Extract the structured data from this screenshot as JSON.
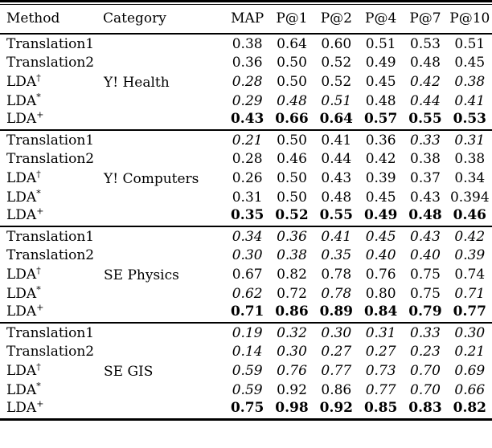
{
  "page": {
    "background": "#ffffff",
    "text_color": "#000000"
  },
  "table": {
    "columns": [
      "Method",
      "Category",
      "MAP",
      "P@1",
      "P@2",
      "P@4",
      "P@7",
      "P@10"
    ],
    "blocks": [
      {
        "category": "Y! Health",
        "rows": [
          {
            "method": "Translation1",
            "sup": "",
            "values": [
              "0.38",
              "0.64",
              "0.60",
              "0.51",
              "0.53",
              "0.51"
            ],
            "styles": [
              "",
              "",
              "",
              "",
              "",
              ""
            ]
          },
          {
            "method": "Translation2",
            "sup": "",
            "values": [
              "0.36",
              "0.50",
              "0.52",
              "0.49",
              "0.48",
              "0.45"
            ],
            "styles": [
              "",
              "",
              "",
              "",
              "",
              ""
            ]
          },
          {
            "method": "LDA",
            "sup": "†",
            "values": [
              "0.28",
              "0.50",
              "0.52",
              "0.45",
              "0.42",
              "0.38"
            ],
            "styles": [
              "i",
              "",
              "",
              "",
              "i",
              "i"
            ]
          },
          {
            "method": "LDA",
            "sup": "*",
            "values": [
              "0.29",
              "0.48",
              "0.51",
              "0.48",
              "0.44",
              "0.41"
            ],
            "styles": [
              "i",
              "i",
              "i",
              "",
              "i",
              "i"
            ]
          },
          {
            "method": "LDA",
            "sup": "+",
            "values": [
              "0.43",
              "0.66",
              "0.64",
              "0.57",
              "0.55",
              "0.53"
            ],
            "styles": [
              "b",
              "b",
              "b",
              "b",
              "b",
              "b"
            ]
          }
        ]
      },
      {
        "category": "Y! Computers",
        "rows": [
          {
            "method": "Translation1",
            "sup": "",
            "values": [
              "0.21",
              "0.50",
              "0.41",
              "0.36",
              "0.33",
              "0.31"
            ],
            "styles": [
              "i",
              "",
              "",
              "",
              "i",
              "i"
            ]
          },
          {
            "method": "Translation2",
            "sup": "",
            "values": [
              "0.28",
              "0.46",
              "0.44",
              "0.42",
              "0.38",
              "0.38"
            ],
            "styles": [
              "",
              "",
              "",
              "",
              "",
              ""
            ]
          },
          {
            "method": "LDA",
            "sup": "†",
            "values": [
              "0.26",
              "0.50",
              "0.43",
              "0.39",
              "0.37",
              "0.34"
            ],
            "styles": [
              "",
              "",
              "",
              "",
              "",
              ""
            ]
          },
          {
            "method": "LDA",
            "sup": "*",
            "values": [
              "0.31",
              "0.50",
              "0.48",
              "0.45",
              "0.43",
              "0.394"
            ],
            "styles": [
              "",
              "",
              "",
              "",
              "",
              ""
            ]
          },
          {
            "method": "LDA",
            "sup": "+",
            "values": [
              "0.35",
              "0.52",
              "0.55",
              "0.49",
              "0.48",
              "0.46"
            ],
            "styles": [
              "b",
              "b",
              "b",
              "b",
              "b",
              "b"
            ]
          }
        ]
      },
      {
        "category": "SE Physics",
        "rows": [
          {
            "method": "Translation1",
            "sup": "",
            "values": [
              "0.34",
              "0.36",
              "0.41",
              "0.45",
              "0.43",
              "0.42"
            ],
            "styles": [
              "i",
              "i",
              "i",
              "i",
              "i",
              "i"
            ]
          },
          {
            "method": "Translation2",
            "sup": "",
            "values": [
              "0.30",
              "0.38",
              "0.35",
              "0.40",
              "0.40",
              "0.39"
            ],
            "styles": [
              "i",
              "i",
              "i",
              "i",
              "i",
              "i"
            ]
          },
          {
            "method": "LDA",
            "sup": "†",
            "values": [
              "0.67",
              "0.82",
              "0.78",
              "0.76",
              "0.75",
              "0.74"
            ],
            "styles": [
              "",
              "",
              "",
              "",
              "",
              ""
            ]
          },
          {
            "method": "LDA",
            "sup": "*",
            "values": [
              "0.62",
              "0.72",
              "0.78",
              "0.80",
              "0.75",
              "0.71"
            ],
            "styles": [
              "i",
              "",
              "i",
              "",
              "",
              "i"
            ]
          },
          {
            "method": "LDA",
            "sup": "+",
            "values": [
              "0.71",
              "0.86",
              "0.89",
              "0.84",
              "0.79",
              "0.77"
            ],
            "styles": [
              "b",
              "b",
              "b",
              "b",
              "b",
              "b"
            ]
          }
        ]
      },
      {
        "category": "SE GIS",
        "rows": [
          {
            "method": "Translation1",
            "sup": "",
            "values": [
              "0.19",
              "0.32",
              "0.30",
              "0.31",
              "0.33",
              "0.30"
            ],
            "styles": [
              "i",
              "i",
              "i",
              "i",
              "i",
              "i"
            ]
          },
          {
            "method": "Translation2",
            "sup": "",
            "values": [
              "0.14",
              "0.30",
              "0.27",
              "0.27",
              "0.23",
              "0.21"
            ],
            "styles": [
              "i",
              "i",
              "i",
              "i",
              "i",
              "i"
            ]
          },
          {
            "method": "LDA",
            "sup": "†",
            "values": [
              "0.59",
              "0.76",
              "0.77",
              "0.73",
              "0.70",
              "0.69"
            ],
            "styles": [
              "i",
              "i",
              "i",
              "i",
              "i",
              "i"
            ]
          },
          {
            "method": "LDA",
            "sup": "*",
            "values": [
              "0.59",
              "0.92",
              "0.86",
              "0.77",
              "0.70",
              "0.66"
            ],
            "styles": [
              "i",
              "",
              "",
              "i",
              "i",
              "i"
            ]
          },
          {
            "method": "LDA",
            "sup": "+",
            "values": [
              "0.75",
              "0.98",
              "0.92",
              "0.85",
              "0.83",
              "0.82"
            ],
            "styles": [
              "b",
              "b",
              "b",
              "b",
              "b",
              "b"
            ]
          }
        ]
      }
    ]
  }
}
